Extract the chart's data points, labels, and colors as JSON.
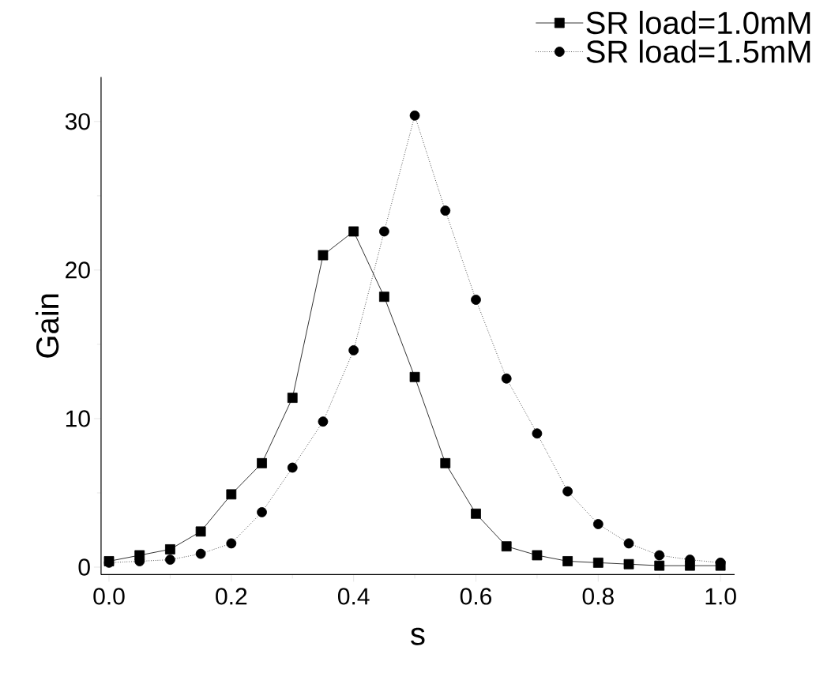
{
  "chart_data": {
    "type": "line",
    "xlabel": "s",
    "ylabel": "Gain",
    "x": [
      0,
      0.05,
      0.1,
      0.15,
      0.2,
      0.25,
      0.3,
      0.35,
      0.4,
      0.45,
      0.5,
      0.55,
      0.6,
      0.65,
      0.7,
      0.75,
      0.8,
      0.85,
      0.9,
      0.95,
      1.0
    ],
    "series": [
      {
        "name": "SR load=1.0mM",
        "color": "#000000",
        "marker": "square",
        "line_style": "solid",
        "values": [
          0.4,
          0.8,
          1.2,
          2.4,
          4.9,
          7.0,
          11.4,
          21.0,
          22.6,
          18.2,
          12.8,
          7.0,
          3.6,
          1.4,
          0.8,
          0.4,
          0.3,
          0.2,
          0.1,
          0.1,
          0.1
        ]
      },
      {
        "name": "SR load=1.5mM",
        "color": "#000000",
        "marker": "circle",
        "line_style": "dotted",
        "values": [
          0.3,
          0.4,
          0.5,
          0.9,
          1.6,
          3.7,
          6.7,
          9.8,
          14.6,
          22.6,
          30.4,
          24.0,
          18.0,
          12.7,
          9.0,
          5.1,
          2.9,
          1.6,
          0.8,
          0.5,
          0.3
        ]
      }
    ],
    "xlim": [
      -0.013,
      1.023
    ],
    "ylim": [
      -0.5,
      33
    ],
    "xticks": [
      {
        "value": 0,
        "label": "0.0"
      },
      {
        "value": 0.2,
        "label": "0.2"
      },
      {
        "value": 0.4,
        "label": "0.4"
      },
      {
        "value": 0.6,
        "label": "0.6"
      },
      {
        "value": 0.8,
        "label": "0.8"
      },
      {
        "value": 1.0,
        "label": "1.0"
      }
    ],
    "yticks": [
      0,
      10,
      20,
      30
    ],
    "grid": false,
    "legend": "top right"
  }
}
